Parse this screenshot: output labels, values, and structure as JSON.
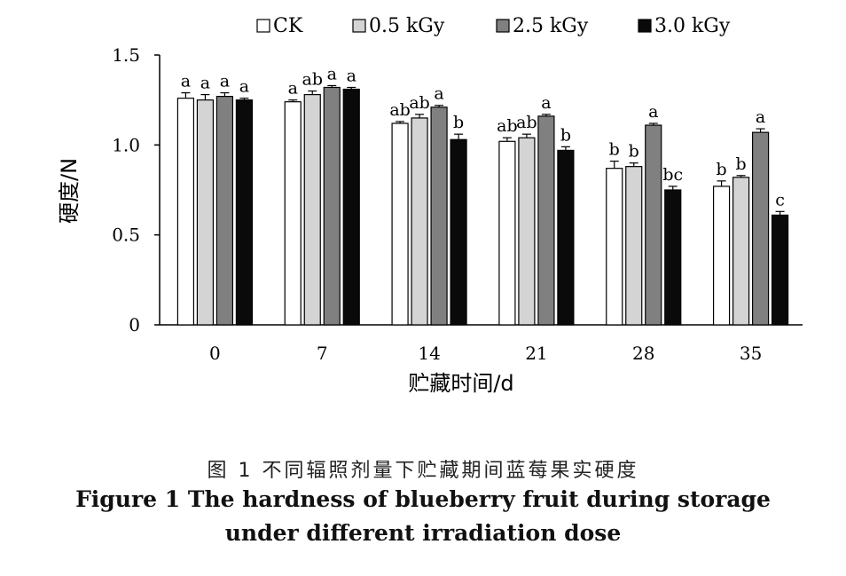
{
  "chart_data": {
    "type": "bar",
    "title": "",
    "xlabel": "贮藏时间/d",
    "ylabel": "硬度/N",
    "ylim": [
      0,
      1.5
    ],
    "yticks": [
      0,
      0.5,
      1.0,
      1.5
    ],
    "ytick_labels": [
      "0",
      "0.5",
      "1.0",
      "1.5"
    ],
    "categories": [
      "0",
      "7",
      "14",
      "21",
      "28",
      "35"
    ],
    "legend_position": "top",
    "grid": false,
    "series": [
      {
        "name": "CK",
        "color": "#ffffff",
        "values": [
          1.26,
          1.24,
          1.12,
          1.02,
          0.87,
          0.77
        ],
        "errors": [
          0.03,
          0.01,
          0.01,
          0.02,
          0.04,
          0.03
        ],
        "labels": [
          "a",
          "a",
          "ab",
          "ab",
          "b",
          "b"
        ]
      },
      {
        "name": "0.5 kGy",
        "color": "#d4d4d4",
        "values": [
          1.25,
          1.28,
          1.15,
          1.04,
          0.88,
          0.82
        ],
        "errors": [
          0.03,
          0.02,
          0.02,
          0.02,
          0.02,
          0.01
        ],
        "labels": [
          "a",
          "ab",
          "ab",
          "ab",
          "b",
          "b"
        ]
      },
      {
        "name": "2.5 kGy",
        "color": "#808080",
        "values": [
          1.27,
          1.32,
          1.21,
          1.16,
          1.11,
          1.07
        ],
        "errors": [
          0.02,
          0.01,
          0.01,
          0.01,
          0.01,
          0.02
        ],
        "labels": [
          "a",
          "a",
          "a",
          "a",
          "a",
          "a"
        ]
      },
      {
        "name": "3.0 kGy",
        "color": "#0a0a0a",
        "values": [
          1.25,
          1.31,
          1.03,
          0.97,
          0.75,
          0.61
        ],
        "errors": [
          0.01,
          0.01,
          0.03,
          0.02,
          0.02,
          0.02
        ],
        "labels": [
          "a",
          "a",
          "b",
          "b",
          "bc",
          "c"
        ]
      }
    ]
  },
  "caption": {
    "cn": "图 1   不同辐照剂量下贮藏期间蓝莓果实硬度",
    "en_line1": "Figure 1   The hardness of blueberry fruit during storage",
    "en_line2": "under different irradiation dose"
  }
}
